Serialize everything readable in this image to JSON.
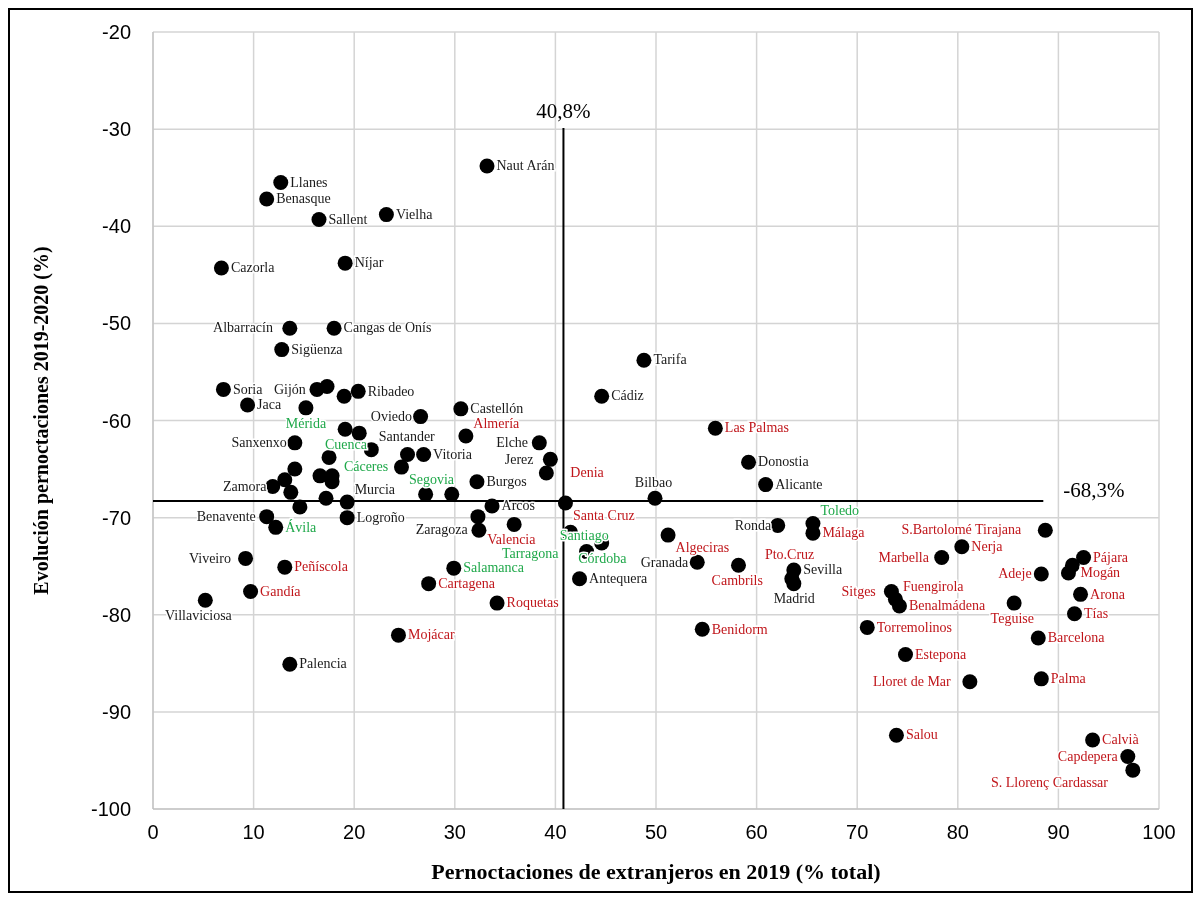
{
  "chart_data": {
    "type": "scatter",
    "xlabel": "Pernoctaciones de extranjeros en 2019 (% total)",
    "ylabel": "Evolución pernoctaciones 2019-2020 (%)",
    "xlim": [
      0,
      100
    ],
    "xticks": [
      0,
      10,
      20,
      30,
      40,
      50,
      60,
      70,
      80,
      90,
      100
    ],
    "ylim": [
      -100,
      -20
    ],
    "yticks": [
      -100,
      -90,
      -80,
      -70,
      -60,
      -50,
      -40,
      -30,
      -20
    ],
    "grid": true,
    "marker": "circle",
    "ref_lines": [
      {
        "axis": "x",
        "value": 40.8,
        "label": "40,8%"
      },
      {
        "axis": "y",
        "value": -68.3,
        "label": "-68,3%"
      }
    ],
    "series": [
      {
        "color": "#000000",
        "x": [
          33.2,
          12.7,
          11.3,
          16.5,
          23.2,
          6.8,
          19.1,
          13.6,
          18.0,
          12.8,
          7.0,
          16.3,
          17.3,
          20.4,
          19.0,
          9.4,
          26.6,
          30.6,
          20.5,
          14.1,
          21.7,
          25.3,
          26.9,
          14.1,
          13.1,
          16.6,
          17.8,
          17.8,
          11.9,
          13.7,
          14.6,
          17.2,
          19.3,
          27.1,
          29.7,
          32.2,
          19.3,
          11.3,
          32.4,
          32.3,
          33.7,
          38.4,
          39.5,
          42.4,
          13.6,
          9.2,
          5.2,
          48.8,
          44.6,
          49.9,
          54.1,
          59.2,
          60.9,
          62.1,
          63.7,
          63.7,
          91.4
        ],
        "values": [
          -33.8,
          -35.5,
          -37.2,
          -39.3,
          -38.8,
          -44.3,
          -43.8,
          -50.5,
          -50.5,
          -52.7,
          -56.8,
          -56.8,
          -56.5,
          -57.0,
          -57.5,
          -58.4,
          -59.6,
          -58.8,
          -61.3,
          -62.3,
          -63.0,
          -63.5,
          -63.5,
          -65.0,
          -66.1,
          -65.7,
          -65.7,
          -66.3,
          -66.8,
          -67.4,
          -68.9,
          -68.0,
          -68.4,
          -67.6,
          -67.6,
          -66.3,
          -70.0,
          -69.9,
          -71.3,
          -69.9,
          -68.8,
          -62.3,
          -64.0,
          -76.3,
          -85.1,
          -74.2,
          -78.5,
          -53.8,
          -57.5,
          -68.0,
          -74.6,
          -64.3,
          -66.6,
          -70.8,
          -75.4,
          -76.8,
          -74.9
        ],
        "value_labels": [
          "Naut Arán",
          "Llanes",
          "Benasque",
          "Sallent",
          "Vielha",
          "Cazorla",
          "Níjar",
          "Albarracín",
          "Cangas de Onís",
          "Sigüenza",
          "Soria",
          "Gijón",
          null,
          "Ribadeo",
          null,
          "Jaca",
          "Oviedo",
          "Castellón",
          null,
          "Sanxenxo",
          "Santander",
          null,
          "Vitoria",
          null,
          null,
          null,
          null,
          null,
          "Zamora",
          null,
          null,
          null,
          "Murcia",
          null,
          null,
          "Burgos",
          "Logroño",
          "Benavente",
          "Zaragoza",
          null,
          "Arcos",
          "Elche",
          "Jerez",
          "Antequera",
          "Palencia",
          "Viveiro",
          "Villaviciosa",
          "Tarifa",
          "Cádiz",
          "Bilbao",
          "Granada",
          "Donostia",
          "Alicante",
          "Ronda",
          "Sevilla",
          "Madrid",
          null
        ]
      },
      {
        "color": "#000000",
        "x": [
          31.1,
          39.1,
          41.0,
          35.9,
          27.4,
          34.2,
          24.4,
          13.1,
          9.7,
          55.9,
          51.2,
          54.6,
          58.2,
          63.5,
          65.6,
          78.4,
          80.4,
          73.4,
          73.8,
          71.0,
          74.2,
          74.8,
          81.2,
          73.9,
          88.7,
          92.5,
          91.0,
          88.3,
          85.6,
          92.2,
          91.6,
          88.0,
          88.3,
          93.4,
          96.9,
          97.4
        ],
        "values": [
          -61.6,
          -65.4,
          -68.5,
          -70.7,
          -76.8,
          -78.8,
          -82.1,
          -75.1,
          -77.6,
          -60.8,
          -71.8,
          -81.5,
          -74.9,
          -76.3,
          -71.6,
          -74.1,
          -73.0,
          -77.6,
          -78.4,
          -81.3,
          -79.1,
          -84.1,
          -86.9,
          -92.4,
          -71.3,
          -74.1,
          -75.7,
          -75.8,
          -78.8,
          -77.9,
          -79.9,
          -82.4,
          -86.6,
          -92.9,
          -94.6,
          -96.0
        ],
        "value_labels": [
          "Almería",
          "Denia",
          "Santa Cruz",
          "Valencia",
          "Cartagena",
          "Roquetas",
          "Mojácar",
          "Peñíscola",
          "Gandía",
          "Las Palmas",
          "Algeciras",
          "Benidorm",
          "Cambrils",
          "Pto.Cruz",
          "Málaga",
          "Marbella",
          "Nerja",
          "Sitges",
          "Fuengirola",
          "Torremolinos",
          "Benalmádena",
          "Estepona",
          "Lloret de Mar",
          "Salou",
          "S.Bartolomé Tirajana",
          "Pájara",
          "Mogán",
          "Adeje",
          "Teguise",
          "Arona",
          "Tías",
          "Barcelona",
          "Palma",
          "Calvià",
          "Capdepera",
          "S. Llorenç Cardassar"
        ]
      },
      {
        "color": "#000000",
        "x": [
          15.2,
          19.1,
          17.5,
          24.7,
          12.2,
          29.9,
          41.5,
          43.1,
          44.6,
          65.6
        ],
        "values": [
          -58.7,
          -60.9,
          -63.8,
          -64.8,
          -71.0,
          -75.2,
          -71.5,
          -73.5,
          -72.6,
          -70.6
        ],
        "value_labels": [
          "Mérida",
          "Cuenca",
          "Cáceres",
          "Segovia",
          "Ávila",
          "Salamanca",
          "Tarragona",
          "Santiago",
          "Córdoba",
          "Toledo"
        ]
      }
    ]
  }
}
